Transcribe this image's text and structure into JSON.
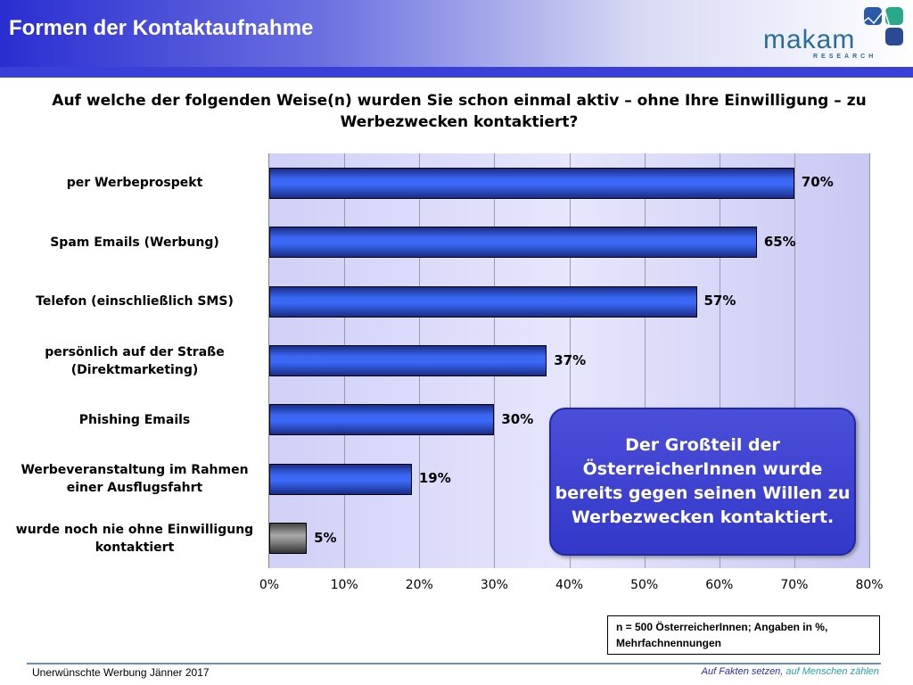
{
  "header": {
    "title": "Formen der Kontaktaufnahme",
    "logo_text": "makam",
    "logo_sub": "RESEARCH"
  },
  "question": "Auf welche der folgenden Weise(n) wurden Sie schon einmal aktiv – ohne Ihre Einwilligung – zu Werbezwecken kontaktiert?",
  "chart_data": {
    "type": "bar",
    "orientation": "horizontal",
    "categories": [
      "per Werbeprospekt",
      "Spam Emails (Werbung)",
      "Telefon (einschließlich SMS)",
      "persönlich auf der Straße (Direktmarketing)",
      "Phishing Emails",
      "Werbeveranstaltung im Rahmen einer Ausflugsfahrt",
      "wurde noch nie ohne Einwilligung kontaktiert"
    ],
    "values": [
      70,
      65,
      57,
      37,
      30,
      19,
      5
    ],
    "labels": [
      "70%",
      "65%",
      "57%",
      "37%",
      "30%",
      "19%",
      "5%"
    ],
    "colors": [
      "#3a66f0",
      "#3a66f0",
      "#3a66f0",
      "#3a66f0",
      "#3a66f0",
      "#3a66f0",
      "#888888"
    ],
    "xlim": [
      0,
      80
    ],
    "xticks": [
      "0%",
      "10%",
      "20%",
      "30%",
      "40%",
      "50%",
      "60%",
      "70%",
      "80%"
    ],
    "grid": true
  },
  "callout": "Der Großteil der ÖsterreicherInnen wurde bereits gegen seinen Willen zu Werbezwecken kontaktiert.",
  "note": "n = 500 ÖsterreicherInnen; Angaben in %, Mehrfachnennungen",
  "footer": {
    "left": "Unerwünschte Werbung Jänner 2017",
    "right_a": "Auf Fakten setzen,",
    "right_b": "auf Menschen zählen"
  }
}
